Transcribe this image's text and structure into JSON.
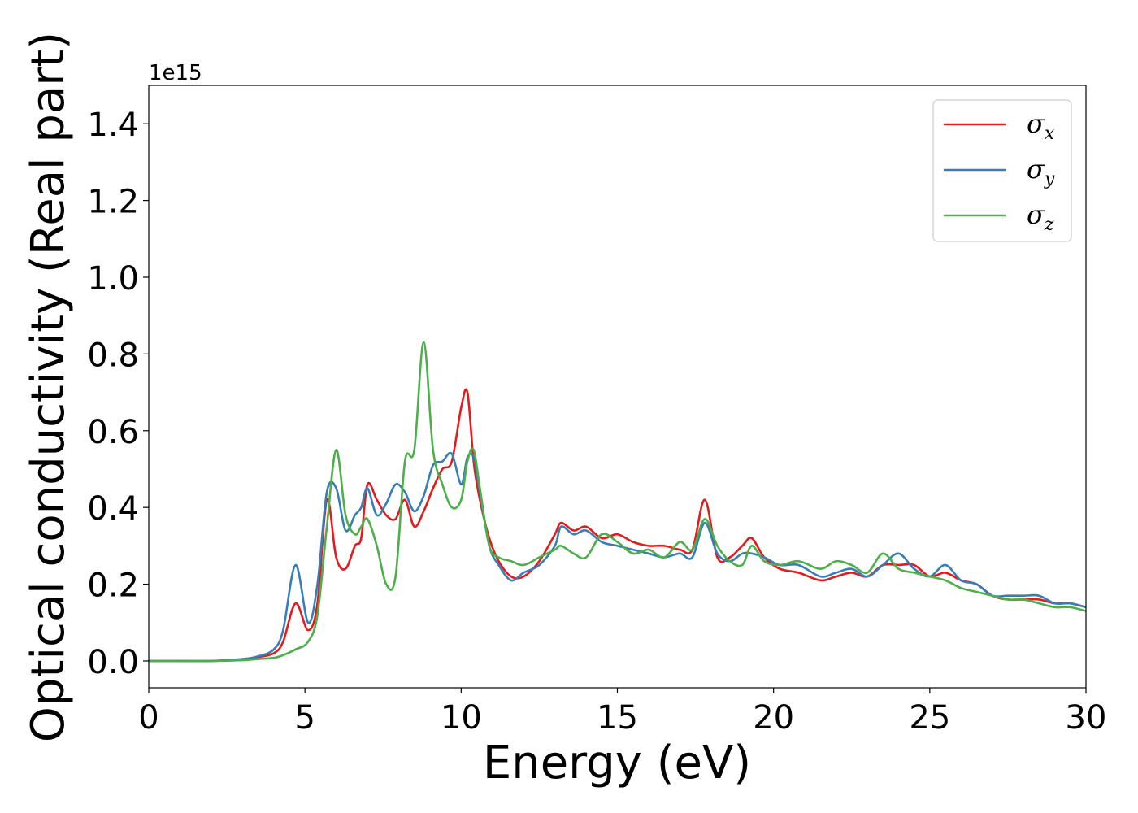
{
  "chart_data": {
    "type": "line",
    "title": "",
    "xlabel": "Energy (eV)",
    "ylabel": "Optical conductivity (Real part)",
    "y_offset_label": "1e15",
    "xlim": [
      0,
      30
    ],
    "ylim": [
      -0.07,
      1.5
    ],
    "x_ticks": [
      0,
      5,
      10,
      15,
      20,
      25,
      30
    ],
    "y_ticks": [
      0.0,
      0.2,
      0.4,
      0.6,
      0.8,
      1.0,
      1.2,
      1.4
    ],
    "x_tick_labels": [
      "0",
      "5",
      "10",
      "15",
      "20",
      "25",
      "30"
    ],
    "y_tick_labels": [
      "0.0",
      "0.2",
      "0.4",
      "0.6",
      "0.8",
      "1.0",
      "1.2",
      "1.4"
    ],
    "grid": false,
    "legend_position": "top-right",
    "series": [
      {
        "name": "σx",
        "symbol": "σ",
        "subscript": "x",
        "color": "#e41a1c",
        "x": [
          0,
          1,
          2,
          3,
          3.5,
          4,
          4.3,
          4.7,
          5.1,
          5.4,
          5.7,
          6.0,
          6.3,
          6.6,
          6.8,
          7.0,
          7.3,
          7.6,
          7.9,
          8.2,
          8.5,
          8.8,
          9.1,
          9.4,
          9.7,
          10.0,
          10.2,
          10.4,
          10.6,
          10.9,
          11.2,
          11.6,
          12.0,
          12.5,
          13.0,
          13.2,
          13.6,
          14.0,
          14.5,
          15.0,
          15.5,
          16.0,
          16.5,
          17.0,
          17.4,
          17.8,
          18.2,
          18.6,
          19.0,
          19.3,
          19.7,
          20.2,
          20.8,
          21.5,
          22.0,
          22.5,
          23.0,
          23.5,
          24.0,
          24.5,
          25.0,
          25.5,
          26.0,
          26.5,
          27.0,
          27.5,
          28.0,
          28.5,
          29.0,
          29.5,
          30.0
        ],
        "y": [
          0.0,
          0.0,
          0.0,
          0.004,
          0.01,
          0.02,
          0.05,
          0.15,
          0.08,
          0.15,
          0.42,
          0.27,
          0.24,
          0.3,
          0.32,
          0.46,
          0.42,
          0.38,
          0.37,
          0.42,
          0.35,
          0.39,
          0.45,
          0.5,
          0.52,
          0.66,
          0.7,
          0.52,
          0.42,
          0.32,
          0.26,
          0.22,
          0.22,
          0.26,
          0.33,
          0.36,
          0.34,
          0.35,
          0.32,
          0.33,
          0.31,
          0.3,
          0.3,
          0.29,
          0.29,
          0.42,
          0.27,
          0.27,
          0.3,
          0.32,
          0.27,
          0.24,
          0.23,
          0.21,
          0.22,
          0.23,
          0.22,
          0.25,
          0.25,
          0.25,
          0.22,
          0.23,
          0.21,
          0.2,
          0.17,
          0.16,
          0.16,
          0.16,
          0.15,
          0.15,
          0.14
        ]
      },
      {
        "name": "σy",
        "symbol": "σ",
        "subscript": "y",
        "color": "#377eb8",
        "x": [
          0,
          1,
          2,
          3,
          3.5,
          4,
          4.3,
          4.7,
          5.1,
          5.4,
          5.7,
          6.0,
          6.3,
          6.6,
          6.8,
          7.0,
          7.3,
          7.6,
          7.9,
          8.2,
          8.5,
          8.8,
          9.1,
          9.4,
          9.7,
          10.0,
          10.2,
          10.4,
          10.6,
          10.9,
          11.2,
          11.6,
          12.0,
          12.5,
          13.0,
          13.2,
          13.6,
          14.0,
          14.5,
          15.0,
          15.5,
          16.0,
          16.5,
          17.0,
          17.4,
          17.8,
          18.2,
          18.6,
          19.0,
          19.3,
          19.7,
          20.2,
          20.8,
          21.5,
          22.0,
          22.5,
          23.0,
          23.5,
          24.0,
          24.5,
          25.0,
          25.5,
          26.0,
          26.5,
          27.0,
          27.5,
          28.0,
          28.5,
          29.0,
          29.5,
          30.0
        ],
        "y": [
          0.0,
          0.0,
          0.0,
          0.005,
          0.012,
          0.03,
          0.08,
          0.25,
          0.1,
          0.2,
          0.44,
          0.45,
          0.34,
          0.38,
          0.4,
          0.45,
          0.38,
          0.41,
          0.46,
          0.44,
          0.39,
          0.43,
          0.51,
          0.52,
          0.54,
          0.46,
          0.53,
          0.53,
          0.44,
          0.3,
          0.25,
          0.21,
          0.23,
          0.25,
          0.3,
          0.35,
          0.33,
          0.34,
          0.31,
          0.3,
          0.29,
          0.28,
          0.27,
          0.28,
          0.27,
          0.36,
          0.28,
          0.26,
          0.28,
          0.28,
          0.27,
          0.25,
          0.25,
          0.22,
          0.23,
          0.24,
          0.22,
          0.25,
          0.28,
          0.24,
          0.22,
          0.25,
          0.21,
          0.2,
          0.17,
          0.17,
          0.17,
          0.17,
          0.15,
          0.15,
          0.14
        ]
      },
      {
        "name": "σz",
        "symbol": "σ",
        "subscript": "z",
        "color": "#4daf4a",
        "x": [
          0,
          1,
          2,
          3,
          3.5,
          4,
          4.3,
          4.7,
          5.1,
          5.4,
          5.7,
          6.0,
          6.3,
          6.6,
          6.8,
          7.0,
          7.3,
          7.6,
          7.9,
          8.2,
          8.5,
          8.8,
          9.1,
          9.4,
          9.7,
          10.0,
          10.2,
          10.4,
          10.6,
          10.9,
          11.2,
          11.6,
          12.0,
          12.5,
          13.0,
          13.2,
          13.6,
          14.0,
          14.5,
          15.0,
          15.5,
          16.0,
          16.5,
          17.0,
          17.4,
          17.8,
          18.2,
          18.6,
          19.0,
          19.3,
          19.7,
          20.2,
          20.8,
          21.5,
          22.0,
          22.5,
          23.0,
          23.5,
          24.0,
          24.5,
          25.0,
          25.5,
          26.0,
          26.5,
          27.0,
          27.5,
          28.0,
          28.5,
          29.0,
          29.5,
          30.0
        ],
        "y": [
          0.0,
          0.0,
          0.0,
          0.002,
          0.005,
          0.008,
          0.015,
          0.03,
          0.05,
          0.12,
          0.35,
          0.55,
          0.38,
          0.33,
          0.35,
          0.37,
          0.3,
          0.2,
          0.22,
          0.52,
          0.55,
          0.83,
          0.55,
          0.46,
          0.4,
          0.42,
          0.52,
          0.55,
          0.45,
          0.3,
          0.27,
          0.26,
          0.25,
          0.27,
          0.29,
          0.3,
          0.28,
          0.27,
          0.33,
          0.31,
          0.28,
          0.29,
          0.27,
          0.31,
          0.29,
          0.37,
          0.3,
          0.26,
          0.25,
          0.3,
          0.26,
          0.25,
          0.26,
          0.24,
          0.26,
          0.25,
          0.23,
          0.28,
          0.24,
          0.23,
          0.22,
          0.21,
          0.19,
          0.18,
          0.17,
          0.16,
          0.16,
          0.15,
          0.14,
          0.14,
          0.13
        ]
      }
    ]
  }
}
